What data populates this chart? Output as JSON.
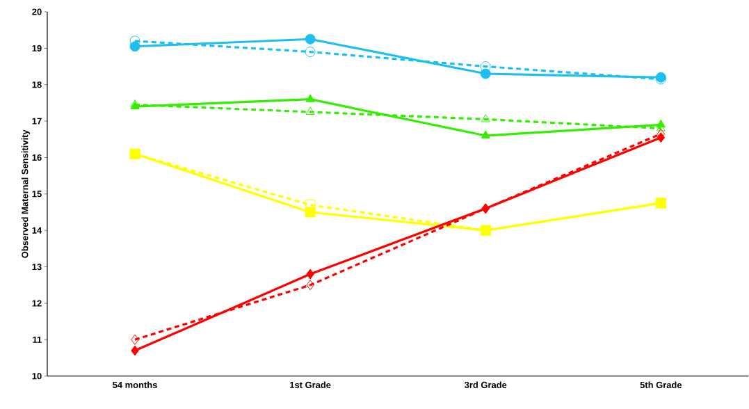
{
  "chart_data": {
    "type": "line",
    "ylabel": "Observed Maternal Sensitivity",
    "categories": [
      "54 months",
      "1st Grade",
      "3rd Grade",
      "5th Grade"
    ],
    "ylim": [
      10,
      20
    ],
    "yticks": [
      10,
      11,
      12,
      13,
      14,
      15,
      16,
      17,
      18,
      19,
      20
    ],
    "series": [
      {
        "color": "#1ebff0",
        "values": [
          19.2,
          18.9,
          18.5,
          18.15
        ],
        "marker": "circle",
        "line_style": "dashed"
      },
      {
        "color": "#1ebff0",
        "values": [
          19.05,
          19.25,
          18.3,
          18.2
        ],
        "marker": "circle",
        "line_style": "solid"
      },
      {
        "color": "#33ee00",
        "values": [
          17.45,
          17.25,
          17.05,
          16.8
        ],
        "marker": "triangle",
        "line_style": "dashed"
      },
      {
        "color": "#33ee00",
        "values": [
          17.4,
          17.6,
          16.6,
          16.9
        ],
        "marker": "triangle",
        "line_style": "solid"
      },
      {
        "color": "#ffff00",
        "values": [
          16.1,
          14.7,
          14.0,
          14.75
        ],
        "marker": "square",
        "line_style": "dashed"
      },
      {
        "color": "#ffff00",
        "values": [
          16.1,
          14.5,
          14.0,
          14.75
        ],
        "marker": "square",
        "line_style": "solid"
      },
      {
        "color": "#ff0000",
        "values": [
          11.0,
          12.5,
          14.6,
          16.65
        ],
        "marker": "diamond",
        "line_style": "dashed"
      },
      {
        "color": "#ff0000",
        "values": [
          10.7,
          12.8,
          14.6,
          16.55
        ],
        "marker": "diamond",
        "line_style": "solid"
      }
    ]
  }
}
